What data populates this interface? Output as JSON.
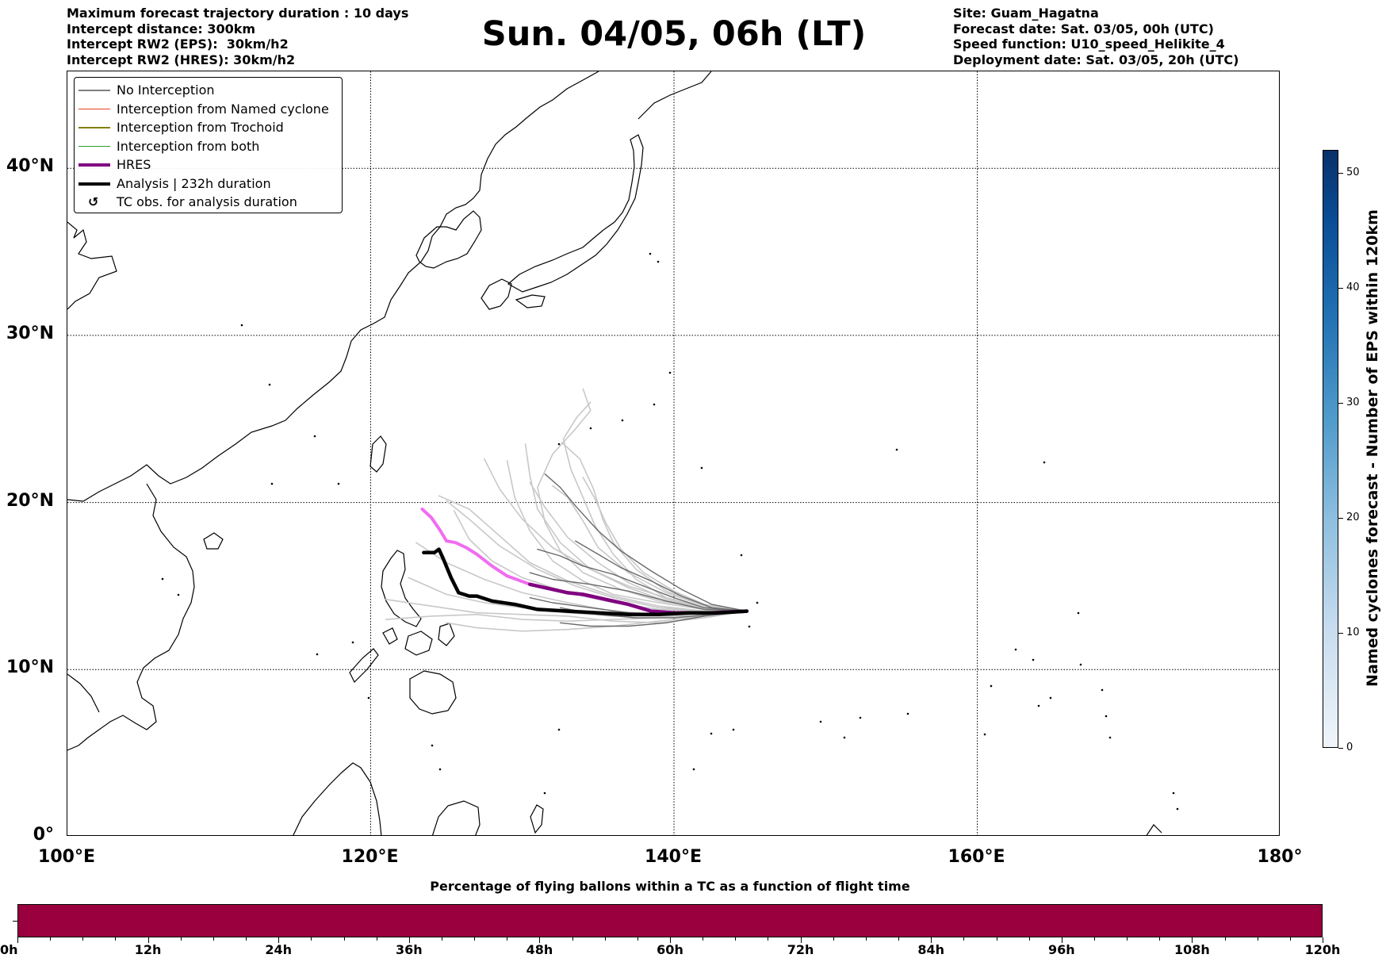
{
  "header": {
    "left": [
      "Maximum forecast trajectory duration : 10 days",
      "Intercept distance: 300km",
      "Intercept RW2 (EPS):  30km/h2",
      "Intercept RW2 (HRES): 30km/h2"
    ],
    "title": "Sun. 04/05, 06h (LT)",
    "right": [
      "Site: Guam_Hagatna",
      "Forecast date: Sat. 03/05, 00h (UTC)",
      "Speed function: U10_speed_Helikite_4",
      "Deployment date: Sat. 03/05, 20h (UTC)"
    ]
  },
  "map": {
    "lat_labels": [
      "40°N",
      "30°N",
      "20°N",
      "10°N",
      "0°"
    ],
    "lon_labels": [
      "100°E",
      "120°E",
      "140°E",
      "160°E",
      "180°"
    ],
    "extent": {
      "lon": [
        100,
        180
      ],
      "lat": [
        0,
        45.8
      ]
    }
  },
  "legend": {
    "items": [
      {
        "label": "No Interception",
        "color": "#7f7f7f",
        "kind": "thin"
      },
      {
        "label": "Interception from Named cyclone",
        "color": "#e8431f",
        "kind": "thin"
      },
      {
        "label": "Interception from Trochoid",
        "color": "#808000",
        "kind": "thin"
      },
      {
        "label": "Interception from both",
        "color": "#2ca02c",
        "kind": "thin"
      },
      {
        "label": "HRES",
        "color": "#800080",
        "kind": "thick"
      },
      {
        "label": "Analysis | 232h duration",
        "color": "#000000",
        "kind": "thick"
      },
      {
        "label": "TC obs. for analysis duration",
        "color": "#000000",
        "kind": "marker",
        "marker": "↺"
      }
    ]
  },
  "colorbar": {
    "title": "Named cyclones forecast - Number of EPS within 120km",
    "ticks": [
      "0",
      "10",
      "20",
      "30",
      "40",
      "50"
    ],
    "range": [
      0,
      52
    ]
  },
  "flight_bar": {
    "title": "Percentage of flying ballons within a TC as a function of flight time",
    "color": "#99003d",
    "ticks": [
      "0h",
      "12h",
      "24h",
      "36h",
      "48h",
      "60h",
      "72h",
      "84h",
      "96h",
      "108h",
      "120h"
    ]
  },
  "tracks": {
    "start": [
      144.8,
      13.5
    ],
    "analysis": [
      [
        144.8,
        13.5
      ],
      [
        143,
        13.4
      ],
      [
        141,
        13.4
      ],
      [
        139,
        13.3
      ],
      [
        137,
        13.3
      ],
      [
        135,
        13.4
      ],
      [
        133,
        13.5
      ],
      [
        131,
        13.6
      ],
      [
        129.5,
        13.9
      ],
      [
        128,
        14.1
      ],
      [
        127,
        14.4
      ],
      [
        126.5,
        14.4
      ],
      [
        125.8,
        14.6
      ],
      [
        125.3,
        15.5
      ],
      [
        124.8,
        16.6
      ],
      [
        124.5,
        17.2
      ],
      [
        124.2,
        17.0
      ],
      [
        123.5,
        17.0
      ]
    ],
    "hres_dark": [
      [
        144.8,
        13.5
      ],
      [
        142.5,
        13.4
      ],
      [
        140,
        13.4
      ],
      [
        138.5,
        13.5
      ],
      [
        137,
        13.9
      ],
      [
        135.5,
        14.2
      ],
      [
        134,
        14.5
      ],
      [
        133,
        14.6
      ],
      [
        131.5,
        14.9
      ],
      [
        130.5,
        15.1
      ]
    ],
    "hres_light": [
      [
        130.5,
        15.1
      ],
      [
        129,
        15.6
      ],
      [
        128,
        16.2
      ],
      [
        127,
        16.9
      ],
      [
        126.3,
        17.3
      ],
      [
        125.6,
        17.6
      ],
      [
        125,
        17.7
      ],
      [
        124.6,
        18.3
      ],
      [
        124,
        19.1
      ],
      [
        123.4,
        19.6
      ]
    ],
    "ensemble": [
      [
        [
          144.8,
          13.5
        ],
        [
          142,
          13.1
        ],
        [
          139,
          12.8
        ],
        [
          136,
          12.9
        ],
        [
          133,
          13.2
        ],
        [
          130,
          13.3
        ],
        [
          127,
          13.4
        ],
        [
          124,
          13.8
        ],
        [
          121,
          14.2
        ]
      ],
      [
        [
          144.8,
          13.5
        ],
        [
          142,
          13.6
        ],
        [
          139,
          14.0
        ],
        [
          136,
          14.5
        ],
        [
          134,
          15.3
        ],
        [
          132,
          16.5
        ],
        [
          130.5,
          18.3
        ],
        [
          129.5,
          20.3
        ],
        [
          129,
          22.5
        ]
      ],
      [
        [
          144.8,
          13.5
        ],
        [
          142,
          13.8
        ],
        [
          139.5,
          14.6
        ],
        [
          137,
          15.8
        ],
        [
          135,
          17.3
        ],
        [
          134,
          18.9
        ],
        [
          133,
          20.3
        ],
        [
          132,
          21.0
        ]
      ],
      [
        [
          144.8,
          13.5
        ],
        [
          142,
          13.5
        ],
        [
          139,
          13.6
        ],
        [
          136,
          14.0
        ],
        [
          133,
          14.6
        ],
        [
          130,
          15.5
        ],
        [
          128,
          16.5
        ],
        [
          126.5,
          17.8
        ],
        [
          125.5,
          19.5
        ]
      ],
      [
        [
          144.8,
          13.5
        ],
        [
          142,
          13.9
        ],
        [
          140,
          14.7
        ],
        [
          138,
          15.8
        ],
        [
          136.5,
          17.2
        ],
        [
          135.5,
          18.8
        ],
        [
          134.8,
          20.2
        ],
        [
          134.0,
          21.5
        ]
      ],
      [
        [
          144.8,
          13.5
        ],
        [
          142,
          13.3
        ],
        [
          139,
          13.2
        ],
        [
          136,
          13.2
        ],
        [
          133,
          13.4
        ],
        [
          130,
          13.7
        ],
        [
          127.5,
          14.0
        ],
        [
          125,
          14.5
        ],
        [
          122.5,
          15.5
        ]
      ],
      [
        [
          144.8,
          13.5
        ],
        [
          142,
          13.7
        ],
        [
          139.5,
          14.3
        ],
        [
          137,
          15.0
        ],
        [
          134.5,
          16.0
        ],
        [
          132,
          17.3
        ],
        [
          130,
          19.0
        ],
        [
          128.5,
          20.8
        ],
        [
          127.5,
          22.6
        ]
      ],
      [
        [
          144.8,
          13.5
        ],
        [
          142,
          13.2
        ],
        [
          139,
          12.9
        ],
        [
          136,
          12.6
        ],
        [
          133,
          12.4
        ],
        [
          130,
          12.3
        ],
        [
          127,
          12.5
        ],
        [
          125,
          12.8
        ]
      ],
      [
        [
          144.8,
          13.5
        ],
        [
          142,
          13.6
        ],
        [
          139.5,
          14.1
        ],
        [
          137,
          14.9
        ],
        [
          134.5,
          16.0
        ],
        [
          132.5,
          17.6
        ],
        [
          131,
          19.6
        ],
        [
          130.5,
          21.6
        ],
        [
          130.2,
          23.5
        ]
      ],
      [
        [
          144.8,
          13.5
        ],
        [
          142,
          13.5
        ],
        [
          139,
          13.7
        ],
        [
          136,
          14.3
        ],
        [
          133.5,
          15.0
        ],
        [
          131,
          16.0
        ],
        [
          128.5,
          17.4
        ],
        [
          126.5,
          19.0
        ],
        [
          125,
          20.1
        ]
      ],
      [
        [
          144.8,
          13.5
        ],
        [
          142,
          13.8
        ],
        [
          139.5,
          14.7
        ],
        [
          137.5,
          16.0
        ],
        [
          136,
          17.6
        ],
        [
          135.3,
          19.0
        ],
        [
          134.7,
          20.8
        ],
        [
          133.8,
          22.6
        ],
        [
          132.6,
          23.6
        ]
      ],
      [
        [
          144.8,
          13.5
        ],
        [
          142,
          13.4
        ],
        [
          139,
          13.3
        ],
        [
          136,
          13.5
        ],
        [
          133,
          14.0
        ],
        [
          130,
          14.6
        ],
        [
          127.5,
          15.4
        ],
        [
          125,
          16.4
        ],
        [
          123,
          17.6
        ]
      ],
      [
        [
          144.8,
          13.5
        ],
        [
          142,
          13.6
        ],
        [
          139.5,
          14.2
        ],
        [
          137,
          15.2
        ],
        [
          135,
          16.4
        ],
        [
          133,
          17.9
        ],
        [
          131.5,
          19.7
        ],
        [
          130.5,
          21.2
        ]
      ],
      [
        [
          144.8,
          13.5
        ],
        [
          142,
          13.3
        ],
        [
          139,
          13.1
        ],
        [
          136,
          13.0
        ],
        [
          133,
          12.9
        ],
        [
          130,
          13.0
        ],
        [
          127,
          13.3
        ],
        [
          124,
          13.2
        ],
        [
          121,
          13.0
        ]
      ],
      [
        [
          144.8,
          13.5
        ],
        [
          142,
          13.7
        ],
        [
          139,
          14.1
        ],
        [
          136.5,
          14.8
        ],
        [
          134,
          15.8
        ],
        [
          132.5,
          17.1
        ],
        [
          131.5,
          18.8
        ],
        [
          131,
          20.9
        ],
        [
          132,
          22.9
        ],
        [
          133.5,
          24.4
        ],
        [
          134.5,
          25.5
        ],
        [
          134.0,
          26.8
        ]
      ],
      [
        [
          144.8,
          13.5
        ],
        [
          142,
          13.5
        ],
        [
          139,
          13.8
        ],
        [
          136,
          14.4
        ],
        [
          133,
          15.3
        ],
        [
          130.5,
          16.4
        ],
        [
          128.5,
          18.0
        ],
        [
          126.5,
          19.6
        ],
        [
          124.5,
          20.4
        ]
      ],
      [
        [
          144.8,
          13.5
        ],
        [
          142,
          13.6
        ],
        [
          139.5,
          14.3
        ],
        [
          137.5,
          15.4
        ],
        [
          136,
          16.9
        ],
        [
          134.8,
          18.6
        ],
        [
          134.0,
          20.3
        ],
        [
          133.2,
          22.0
        ],
        [
          132.7,
          23.8
        ],
        [
          133.6,
          25.1
        ],
        [
          134.5,
          26.0
        ]
      ]
    ],
    "ensemble_dark": [
      [
        [
          144.8,
          13.5
        ],
        [
          142,
          13.7
        ],
        [
          140,
          14.3
        ],
        [
          138,
          15.0
        ],
        [
          136,
          15.7
        ],
        [
          134,
          16.2
        ],
        [
          132.5,
          16.8
        ],
        [
          131,
          17.2
        ]
      ],
      [
        [
          144.8,
          13.5
        ],
        [
          142.5,
          13.9
        ],
        [
          140.5,
          14.8
        ],
        [
          138.5,
          15.9
        ],
        [
          136.5,
          17.1
        ],
        [
          135,
          18.3
        ],
        [
          133.5,
          19.8
        ],
        [
          132.5,
          20.9
        ],
        [
          131.5,
          21.7
        ]
      ],
      [
        [
          144.8,
          13.5
        ],
        [
          142,
          13.6
        ],
        [
          139.5,
          14.1
        ],
        [
          137,
          14.7
        ],
        [
          134.5,
          15.1
        ],
        [
          132,
          15.4
        ],
        [
          130.5,
          15.8
        ]
      ],
      [
        [
          144.8,
          13.5
        ],
        [
          142,
          13.4
        ],
        [
          139.5,
          13.3
        ],
        [
          137,
          13.4
        ],
        [
          134.5,
          13.7
        ],
        [
          132,
          14.0
        ],
        [
          130.5,
          14.3
        ]
      ],
      [
        [
          144.8,
          13.5
        ],
        [
          142,
          13.2
        ],
        [
          139.5,
          12.8
        ],
        [
          137,
          12.6
        ],
        [
          134.5,
          12.6
        ],
        [
          132.5,
          12.8
        ]
      ],
      [
        [
          144.8,
          13.5
        ],
        [
          142.5,
          13.7
        ],
        [
          140.5,
          14.4
        ],
        [
          138.5,
          15.3
        ],
        [
          136.5,
          16.1
        ],
        [
          135,
          16.9
        ],
        [
          133.5,
          17.7
        ]
      ],
      [
        [
          144.8,
          13.5
        ],
        [
          142.5,
          13.3
        ],
        [
          140,
          13.1
        ],
        [
          137.5,
          13.1
        ],
        [
          135,
          13.3
        ],
        [
          132.5,
          13.7
        ]
      ]
    ]
  }
}
